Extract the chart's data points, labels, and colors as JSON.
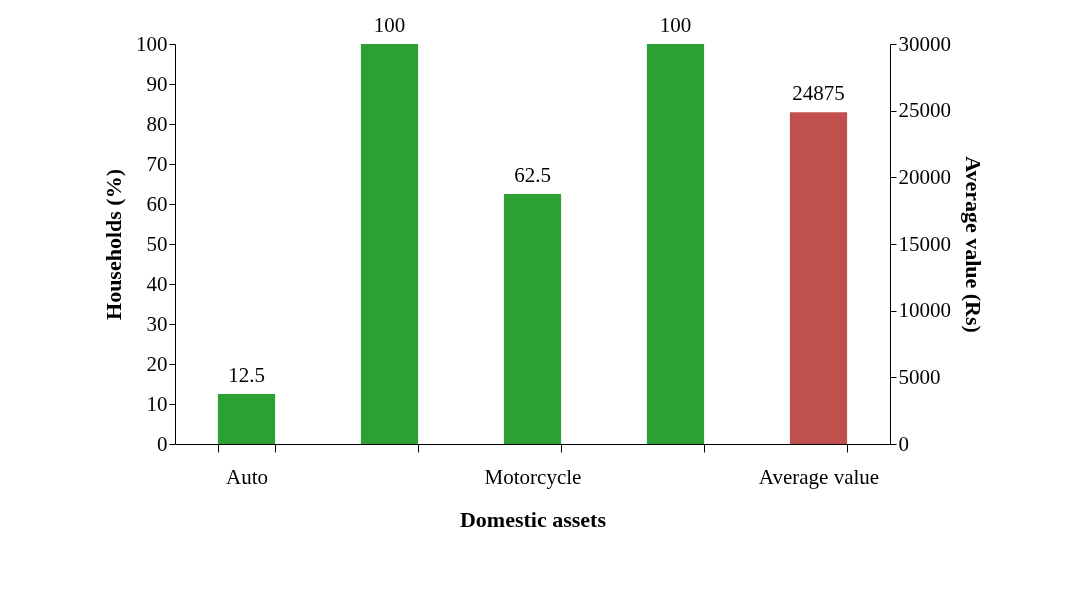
{
  "chart_data": {
    "type": "bar",
    "xlabel": "Domestic assets",
    "ylabel": "Households (%)",
    "y2label": "Average value (Rs)",
    "categories": [
      "Auto",
      null,
      "Motorcycle",
      null,
      "Average value"
    ],
    "series": [
      {
        "color": "#2ca033",
        "values": [
          12.5,
          100,
          62.5,
          100,
          null
        ]
      },
      {
        "color": "#c0504d",
        "axis": "y2",
        "values": [
          null,
          null,
          null,
          null,
          24875
        ]
      }
    ],
    "ylim": [
      0,
      100
    ],
    "yticks": [
      0,
      10,
      20,
      30,
      40,
      50,
      60,
      70,
      80,
      90,
      100
    ],
    "y2lim": [
      0,
      30000
    ],
    "y2ticks": [
      0,
      5000,
      10000,
      15000,
      20000,
      25000,
      30000
    ],
    "data_labels": true
  }
}
